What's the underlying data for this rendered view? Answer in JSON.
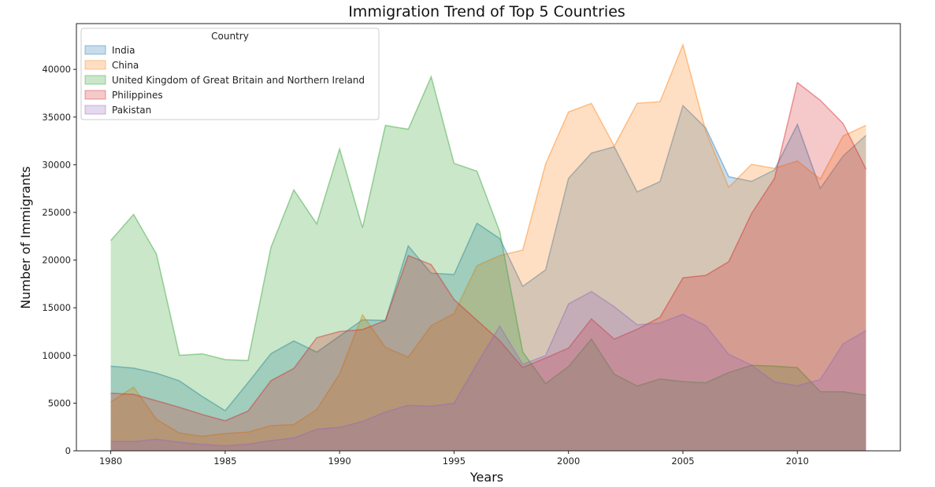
{
  "chart_data": {
    "type": "area",
    "title": "Immigration Trend of Top 5 Countries",
    "xlabel": "Years",
    "ylabel": "Number of Immigrants",
    "xlim": [
      1978.5,
      2014.5
    ],
    "ylim": [
      0,
      44800
    ],
    "xticks": [
      1980,
      1985,
      1990,
      1995,
      2000,
      2005,
      2010
    ],
    "yticks": [
      0,
      5000,
      10000,
      15000,
      20000,
      25000,
      30000,
      35000,
      40000
    ],
    "grid": false,
    "stacked": false,
    "legend": {
      "title": "Country",
      "placement": "top-left"
    },
    "x": [
      1980,
      1981,
      1982,
      1983,
      1984,
      1985,
      1986,
      1987,
      1988,
      1989,
      1990,
      1991,
      1992,
      1993,
      1994,
      1995,
      1996,
      1997,
      1998,
      1999,
      2000,
      2001,
      2002,
      2003,
      2004,
      2005,
      2006,
      2007,
      2008,
      2009,
      2010,
      2011,
      2012,
      2013
    ],
    "series": [
      {
        "name": "India",
        "color": "#1f77b4",
        "values": [
          8880,
          8670,
          8147,
          7338,
          5704,
          4211,
          7150,
          10189,
          11522,
          10343,
          12041,
          13734,
          13673,
          21496,
          18620,
          18489,
          23859,
          22268,
          17241,
          18974,
          28572,
          31223,
          31889,
          27155,
          28235,
          36210,
          33848,
          28742,
          28261,
          29456,
          34235,
          27509,
          30933,
          33087
        ]
      },
      {
        "name": "China",
        "color": "#ff7f0e",
        "values": [
          5123,
          6682,
          3308,
          1863,
          1527,
          1816,
          1960,
          2643,
          2758,
          4323,
          8076,
          14255,
          10846,
          9817,
          13128,
          14398,
          19415,
          20475,
          21049,
          30069,
          35529,
          36434,
          31961,
          36439,
          36619,
          42584,
          33518,
          27642,
          30037,
          29622,
          30391,
          28502,
          33024,
          34129
        ]
      },
      {
        "name": "United Kingdom of Great Britain and Northern Ireland",
        "color": "#2ca02c",
        "values": [
          22045,
          24796,
          20620,
          10015,
          10170,
          9564,
          9470,
          21337,
          27359,
          23795,
          31668,
          23380,
          34123,
          33720,
          39231,
          30145,
          29322,
          22965,
          10367,
          7045,
          8840,
          11728,
          8046,
          6797,
          7533,
          7258,
          7140,
          8216,
          8979,
          8876,
          8724,
          6204,
          6195,
          5827
        ]
      },
      {
        "name": "Philippines",
        "color": "#d62728",
        "values": [
          6051,
          5921,
          5249,
          4562,
          3801,
          3150,
          4166,
          7360,
          8639,
          11865,
          12509,
          12718,
          13670,
          20479,
          19532,
          15864,
          13692,
          11549,
          8735,
          9734,
          10763,
          13836,
          11707,
          12758,
          14004,
          18139,
          18400,
          19837,
          24887,
          28573,
          38617,
          36765,
          34315,
          29544
        ]
      },
      {
        "name": "Pakistan",
        "color": "#9467bd",
        "values": [
          978,
          972,
          1201,
          900,
          668,
          514,
          691,
          1072,
          1334,
          2261,
          2470,
          3079,
          4071,
          4777,
          4666,
          4994,
          9125,
          13073,
          9068,
          9979,
          15400,
          16708,
          15110,
          13205,
          13399,
          14314,
          13127,
          10124,
          8994,
          7217,
          6811,
          7468,
          11227,
          12603
        ]
      }
    ]
  }
}
